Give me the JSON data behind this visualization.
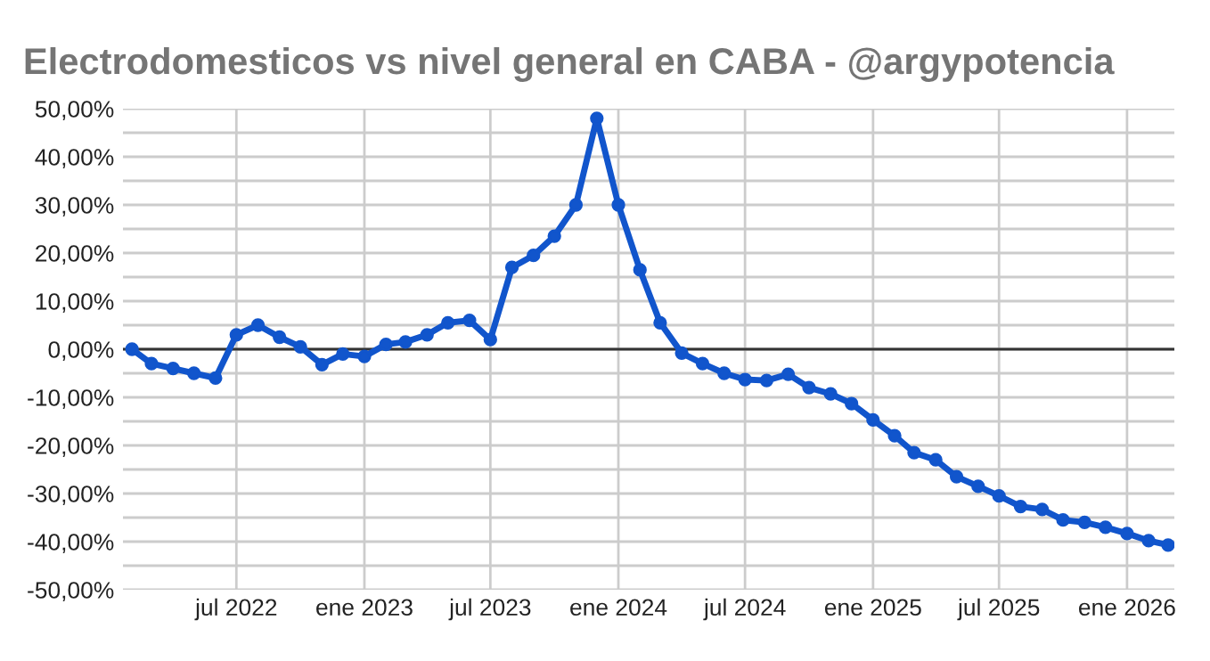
{
  "chart_data": {
    "type": "line",
    "title": "Electrodomesticos vs nivel general en CABA - @argypotencia",
    "x": [
      "2022-02",
      "2022-03",
      "2022-04",
      "2022-05",
      "2022-06",
      "2022-07",
      "2022-08",
      "2022-09",
      "2022-10",
      "2022-11",
      "2022-12",
      "2023-01",
      "2023-02",
      "2023-03",
      "2023-04",
      "2023-05",
      "2023-06",
      "2023-07",
      "2023-08",
      "2023-09",
      "2023-10",
      "2023-11",
      "2023-12",
      "2024-01",
      "2024-02",
      "2024-03",
      "2024-04",
      "2024-05",
      "2024-06",
      "2024-07",
      "2024-08",
      "2024-09",
      "2024-10",
      "2024-11",
      "2024-12",
      "2025-01",
      "2025-02",
      "2025-03",
      "2025-04",
      "2025-05",
      "2025-06",
      "2025-07",
      "2025-08",
      "2025-09",
      "2025-10",
      "2025-11",
      "2025-12",
      "2026-01",
      "2026-02",
      "2026-03"
    ],
    "series": [
      {
        "color": "#1155cc",
        "values": [
          0,
          -3,
          -4,
          -5,
          -6,
          3,
          5,
          2.5,
          0.5,
          -3.2,
          -1,
          -1.5,
          1,
          1.5,
          3,
          5.5,
          6,
          2,
          17,
          19.5,
          23.5,
          30,
          48,
          30,
          16.5,
          5.5,
          -0.8,
          -3,
          -5,
          -6.3,
          -6.5,
          -5.2,
          -8,
          -9.3,
          -11.3,
          -14.7,
          -18,
          -21.5,
          -23,
          -26.5,
          -28.5,
          -30.5,
          -32.7,
          -33.3,
          -35.5,
          -36,
          -37,
          -38.3,
          -39.8,
          -40.7
        ]
      }
    ],
    "xlim": [
      "2022-01-19",
      "2026-03-10"
    ],
    "xticks": [
      {
        "value": "2022-07-01",
        "label": "jul 2022"
      },
      {
        "value": "2023-01-01",
        "label": "ene 2023"
      },
      {
        "value": "2023-07-01",
        "label": "jul 2023"
      },
      {
        "value": "2024-01-01",
        "label": "ene 2024"
      },
      {
        "value": "2024-07-01",
        "label": "jul 2024"
      },
      {
        "value": "2025-01-01",
        "label": "ene 2025"
      },
      {
        "value": "2025-07-01",
        "label": "jul 2025"
      },
      {
        "value": "2026-01-01",
        "label": "ene 2026"
      }
    ],
    "ylim": [
      -50,
      50
    ],
    "yticks": [
      {
        "value": -50,
        "label": "-50,00%"
      },
      {
        "value": -45,
        "label": null
      },
      {
        "value": -40,
        "label": "-40,00%"
      },
      {
        "value": -35,
        "label": null
      },
      {
        "value": -30,
        "label": "-30,00%"
      },
      {
        "value": -25,
        "label": null
      },
      {
        "value": -20,
        "label": "-20,00%"
      },
      {
        "value": -15,
        "label": null
      },
      {
        "value": -10,
        "label": "-10,00%"
      },
      {
        "value": -5,
        "label": null
      },
      {
        "value": 0,
        "label": "0,00%"
      },
      {
        "value": 5,
        "label": null
      },
      {
        "value": 10,
        "label": "10,00%"
      },
      {
        "value": 15,
        "label": null
      },
      {
        "value": 20,
        "label": "20,00%"
      },
      {
        "value": 25,
        "label": null
      },
      {
        "value": 30,
        "label": "30,00%"
      },
      {
        "value": 35,
        "label": null
      },
      {
        "value": 40,
        "label": "40,00%"
      },
      {
        "value": 45,
        "label": null
      },
      {
        "value": 50,
        "label": "50,00%"
      }
    ],
    "ref_lines": [
      {
        "axis": "y",
        "value": 0,
        "label": null,
        "color": "#333333"
      }
    ],
    "grid": true,
    "marker": "circle",
    "line_style": "solid",
    "legend": false
  }
}
